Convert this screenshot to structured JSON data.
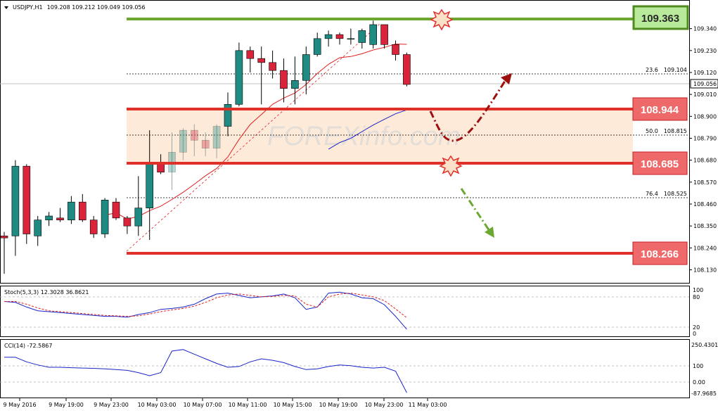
{
  "header": {
    "symbol": "USDJPY,H1",
    "ohlc": "109.208 109.212 109.049 109.056"
  },
  "subpanels": {
    "stoch_label": "Stoch(5,3,3) 12.3028 36.8621",
    "cci_label": "CCI(14) -72.5867",
    "stoch_ticks": [
      "100",
      "80",
      "20",
      "0"
    ],
    "cci_ticks": [
      "250.4301",
      "100",
      "0.00",
      "-87.9685"
    ]
  },
  "levels": {
    "top": "109.363",
    "upper": "108.944",
    "lower": "108.685",
    "bottom": "108.266",
    "colors": {
      "top": "#6aa832",
      "top_fill": "#b9e99a",
      "red": "#e0302a",
      "red_fill": "#ee6a6a"
    }
  },
  "fib": [
    {
      "ratio": "23.6",
      "price": "109.104"
    },
    {
      "ratio": "50.0",
      "price": "108.815"
    },
    {
      "ratio": "76.4",
      "price": "108.525"
    }
  ],
  "current_price": "109.056",
  "watermark": "FOREXinfo.com",
  "chart_data": {
    "type": "candlestick",
    "ylim": [
      108.1,
      109.42
    ],
    "y_ticks": [
      "109.340",
      "109.230",
      "109.120",
      "109.010",
      "108.900",
      "108.790",
      "108.680",
      "108.570",
      "108.460",
      "108.350",
      "108.240",
      "108.130"
    ],
    "x_ticks": [
      "9 May 2016",
      "9 May 19:00",
      "9 May 23:00",
      "10 May 03:00",
      "10 May 07:00",
      "10 May 11:00",
      "10 May 15:00",
      "10 May 19:00",
      "10 May 23:00",
      "11 May 03:00"
    ],
    "candles": [
      [
        108.3,
        108.32,
        108.11,
        108.29
      ],
      [
        108.3,
        108.68,
        108.2,
        108.65
      ],
      [
        108.65,
        108.66,
        108.26,
        108.31
      ],
      [
        108.3,
        108.4,
        108.25,
        108.38
      ],
      [
        108.38,
        108.42,
        108.35,
        108.4
      ],
      [
        108.39,
        108.44,
        108.37,
        108.38
      ],
      [
        108.38,
        108.5,
        108.36,
        108.47
      ],
      [
        108.47,
        108.51,
        108.37,
        108.38
      ],
      [
        108.38,
        108.4,
        108.29,
        108.31
      ],
      [
        108.31,
        108.49,
        108.29,
        108.48
      ],
      [
        108.47,
        108.49,
        108.38,
        108.39
      ],
      [
        108.39,
        108.4,
        108.31,
        108.35
      ],
      [
        108.35,
        108.6,
        108.3,
        108.44
      ],
      [
        108.44,
        108.83,
        108.28,
        108.67
      ],
      [
        108.67,
        108.71,
        108.61,
        108.62
      ],
      [
        108.62,
        108.82,
        108.53,
        108.72
      ],
      [
        108.72,
        108.84,
        108.68,
        108.83
      ],
      [
        108.83,
        108.86,
        108.7,
        108.78
      ],
      [
        108.78,
        108.82,
        108.7,
        108.74
      ],
      [
        108.74,
        108.86,
        108.69,
        108.85
      ],
      [
        108.85,
        109.02,
        108.8,
        108.96
      ],
      [
        108.96,
        109.27,
        108.95,
        109.23
      ],
      [
        109.23,
        109.25,
        109.12,
        109.19
      ],
      [
        109.19,
        109.25,
        108.96,
        109.17
      ],
      [
        109.17,
        109.23,
        109.09,
        109.13
      ],
      [
        109.13,
        109.19,
        108.97,
        109.04
      ],
      [
        109.04,
        109.2,
        108.96,
        109.08
      ],
      [
        109.08,
        109.25,
        109.01,
        109.21
      ],
      [
        109.21,
        109.32,
        109.2,
        109.29
      ],
      [
        109.29,
        109.33,
        109.25,
        109.31
      ],
      [
        109.31,
        109.32,
        109.26,
        109.29
      ],
      [
        109.29,
        109.34,
        109.26,
        109.29
      ],
      [
        109.27,
        109.34,
        109.24,
        109.33
      ],
      [
        109.26,
        109.38,
        109.24,
        109.36
      ],
      [
        109.36,
        109.36,
        109.24,
        109.26
      ],
      [
        109.26,
        109.28,
        109.18,
        109.21
      ],
      [
        109.21,
        109.22,
        109.05,
        109.06
      ]
    ],
    "colors": {
      "bull": "#1f8a82",
      "bear": "#d9243c",
      "ma": "#e02020",
      "ma2": "#1a24c8",
      "stoch_main": "#1a24c8",
      "stoch_signal": "#e02020",
      "cci": "#1a24c8"
    },
    "stoch": {
      "ylim": [
        0,
        100
      ],
      "main": [
        72,
        70,
        60,
        52,
        50,
        48,
        46,
        44,
        42,
        40,
        40,
        38,
        44,
        48,
        55,
        57,
        60,
        66,
        78,
        88,
        90,
        85,
        80,
        82,
        84,
        88,
        80,
        55,
        60,
        90,
        92,
        88,
        80,
        78,
        65,
        40,
        12
      ],
      "signal": [
        72,
        72,
        66,
        58,
        52,
        50,
        48,
        46,
        44,
        42,
        41,
        40,
        41,
        45,
        50,
        54,
        57,
        62,
        70,
        80,
        86,
        88,
        85,
        82,
        83,
        85,
        84,
        66,
        60,
        82,
        88,
        90,
        86,
        82,
        74,
        56,
        37
      ]
    },
    "cci": {
      "ylim": [
        -87.9685,
        250.4301
      ],
      "values": [
        160,
        160,
        130,
        110,
        95,
        95,
        92,
        90,
        88,
        85,
        80,
        75,
        60,
        40,
        60,
        200,
        210,
        180,
        150,
        120,
        95,
        100,
        130,
        150,
        140,
        125,
        100,
        80,
        85,
        100,
        110,
        105,
        95,
        90,
        95,
        70,
        -70
      ]
    }
  }
}
